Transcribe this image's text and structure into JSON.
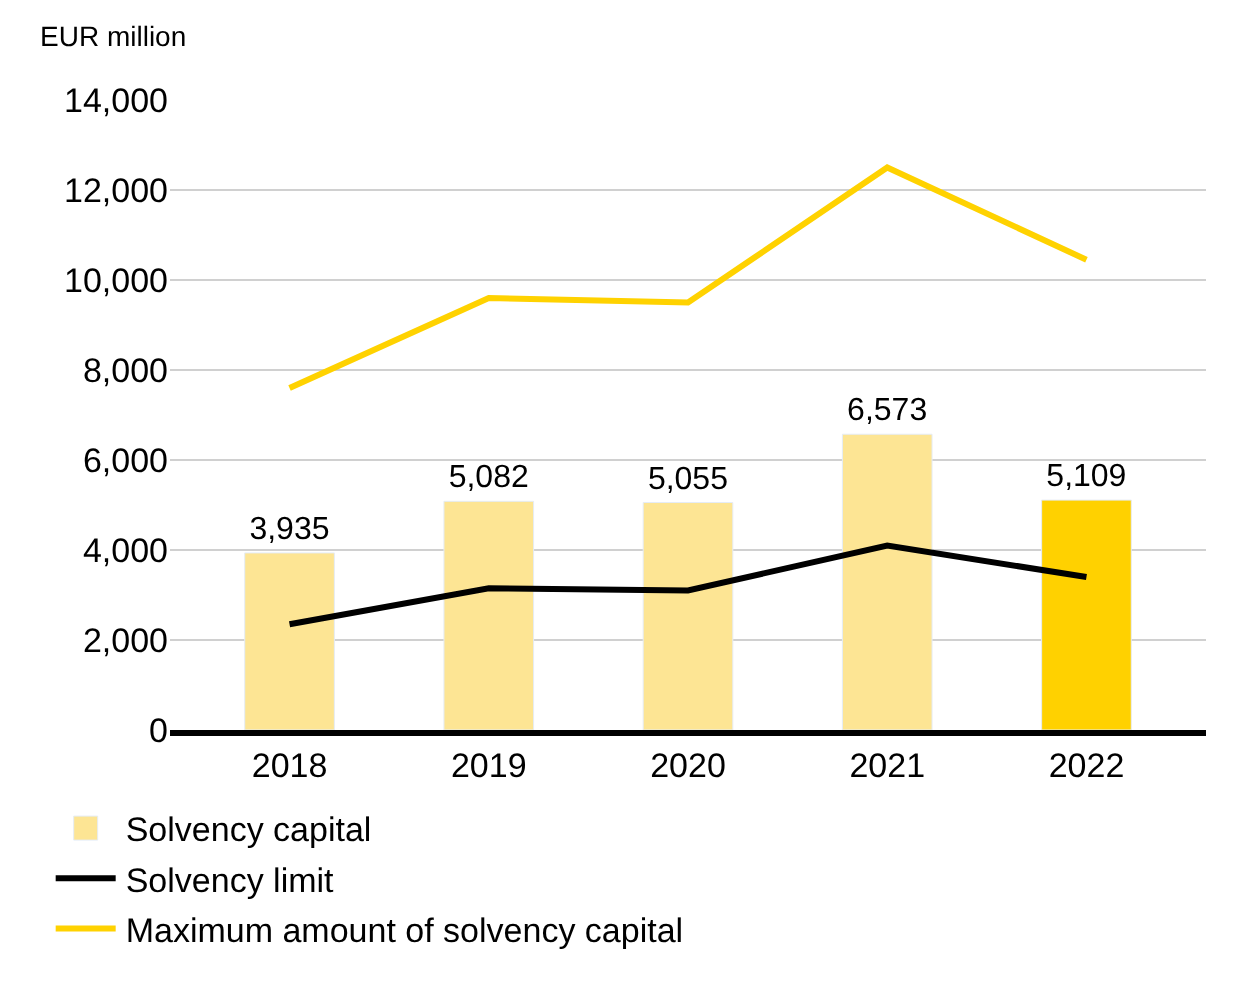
{
  "chart_data": {
    "type": "bar",
    "ylabel": "EUR million",
    "categories": [
      "2018",
      "2019",
      "2020",
      "2021",
      "2022"
    ],
    "series": [
      {
        "name": "Solvency capital",
        "color": "#ffd100",
        "colors": [
          "#fde594",
          "#fde594",
          "#fde594",
          "#fde594",
          "#ffd100"
        ],
        "values": [
          3935,
          5082,
          5055,
          6573,
          5109
        ],
        "value_labels": [
          "3,935",
          "5,082",
          "5,055",
          "6,573",
          "5,109"
        ]
      },
      {
        "name": "Solvency limit",
        "type": "line",
        "color": "#000000",
        "values": [
          2350,
          3150,
          3100,
          4100,
          3400
        ]
      },
      {
        "name": "Maximum amount of solvency capital",
        "type": "line",
        "color": "#ffd200",
        "values": [
          7600,
          9600,
          9500,
          12500,
          10450
        ]
      }
    ],
    "ylim": [
      0,
      14000
    ],
    "yticks": [
      {
        "value": 0,
        "label": "0"
      },
      {
        "value": 2000,
        "label": "2,000"
      },
      {
        "value": 4000,
        "label": "4,000"
      },
      {
        "value": 6000,
        "label": "6,000"
      },
      {
        "value": 8000,
        "label": "8,000"
      },
      {
        "value": 10000,
        "label": "10,000"
      },
      {
        "value": 12000,
        "label": "12,000"
      },
      {
        "value": 14000,
        "label": "14,000"
      }
    ],
    "grid": "y",
    "legend": "bottom left",
    "marker": "none",
    "line_style": "solid"
  }
}
